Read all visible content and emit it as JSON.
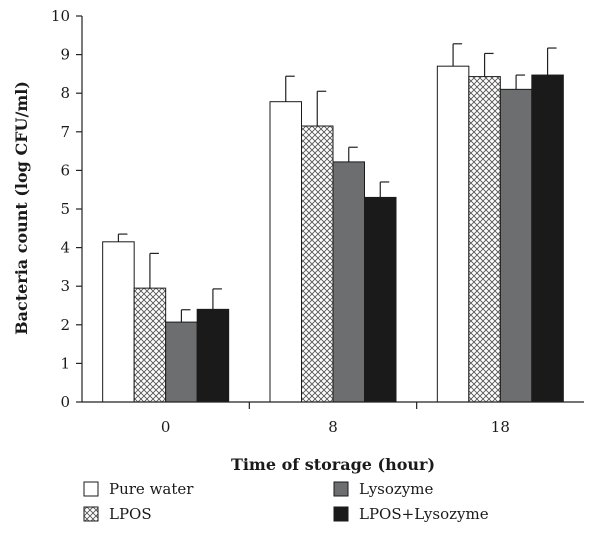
{
  "chart_data": {
    "type": "bar",
    "title": "",
    "xlabel": "Time of storage (hour)",
    "ylabel": "Bacteria count (log CFU/ml)",
    "ylim": [
      0,
      10
    ],
    "yticks": [
      "0",
      "1",
      "2",
      "3",
      "4",
      "5",
      "6",
      "7",
      "8",
      "9",
      "10"
    ],
    "categories": [
      "0",
      "8",
      "18"
    ],
    "series": [
      {
        "name": "Pure water",
        "values": [
          4.15,
          7.78,
          8.7
        ],
        "errors": [
          0.2,
          0.66,
          0.58
        ],
        "fill": "white",
        "color": "#ffffff"
      },
      {
        "name": "LPOS",
        "values": [
          2.95,
          7.15,
          8.43
        ],
        "errors": [
          0.9,
          0.9,
          0.6
        ],
        "fill": "crosshatch",
        "color": "#ffffff"
      },
      {
        "name": "Lysozyme",
        "values": [
          2.07,
          6.22,
          8.1
        ],
        "errors": [
          0.32,
          0.38,
          0.37
        ],
        "fill": "gray",
        "color": "#6d6e70"
      },
      {
        "name": "LPOS+Lysozyme",
        "values": [
          2.4,
          5.3,
          8.47
        ],
        "errors": [
          0.53,
          0.4,
          0.7
        ],
        "fill": "black",
        "color": "#1a1a1a"
      }
    ],
    "legend_position": "bottom",
    "grid": false
  }
}
